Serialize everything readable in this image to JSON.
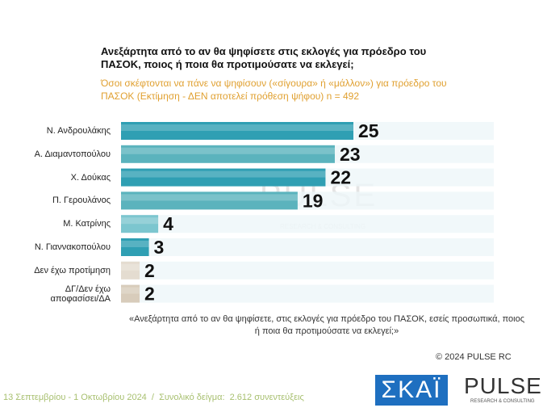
{
  "chart_data": {
    "type": "bar",
    "orientation": "horizontal",
    "title": "Ανεξάρτητα από το αν θα ψηφίσετε στις εκλογές για πρόεδρο του ΠΑΣΟΚ, ποιος ή ποια θα προτιμούσατε να εκλεγεί;",
    "subtitle": "Όσοι σκέφτονται να πάνε να ψηφίσουν («σίγουρα» ή «μάλλον») για πρόεδρο του ΠΑΣΟΚ   (Εκτίμηση - ΔΕΝ αποτελεί πρόθεση ψήφου)   n = 492",
    "categories": [
      "Ν. Ανδρουλάκης",
      "Α. Διαμαντοπούλου",
      "Χ. Δούκας",
      "Π. Γερουλάνος",
      "Μ. Κατρίνης",
      "Ν. Γιαννακοπούλου",
      "Δεν έχω προτίμηση",
      "ΔΓ/Δεν έχω αποφασίσει/ΔΑ"
    ],
    "values": [
      25,
      23,
      22,
      19,
      4,
      3,
      2,
      2
    ],
    "colors": [
      "#2f9fb3",
      "#5bb3bd",
      "#2f9fb3",
      "#5bb3bd",
      "#7cc6cf",
      "#2f9fb3",
      "#e4dcd0",
      "#d8ccbb"
    ],
    "note": "«Ανεξάρτητα από το αν θα ψηφίσετε, στις εκλογές για πρόεδρο του ΠΑΣΟΚ, εσείς προσωπικά, ποιος ή ποια θα προτιμούσατε να εκλεγεί;»",
    "copyright": "© 2024 PULSE RC",
    "footer": "13 Σεπτεμβρίου - 1 Οκτωβρίου 2024  /  Συνολικό δείγμα:  2.612 συνεντεύξεις",
    "watermark": [
      "PULSE",
      "RESEARCH & CONSULTING"
    ],
    "logos": [
      "ΣΚΑΪ",
      "PULSE",
      "RESEARCH & CONSULTING"
    ]
  }
}
